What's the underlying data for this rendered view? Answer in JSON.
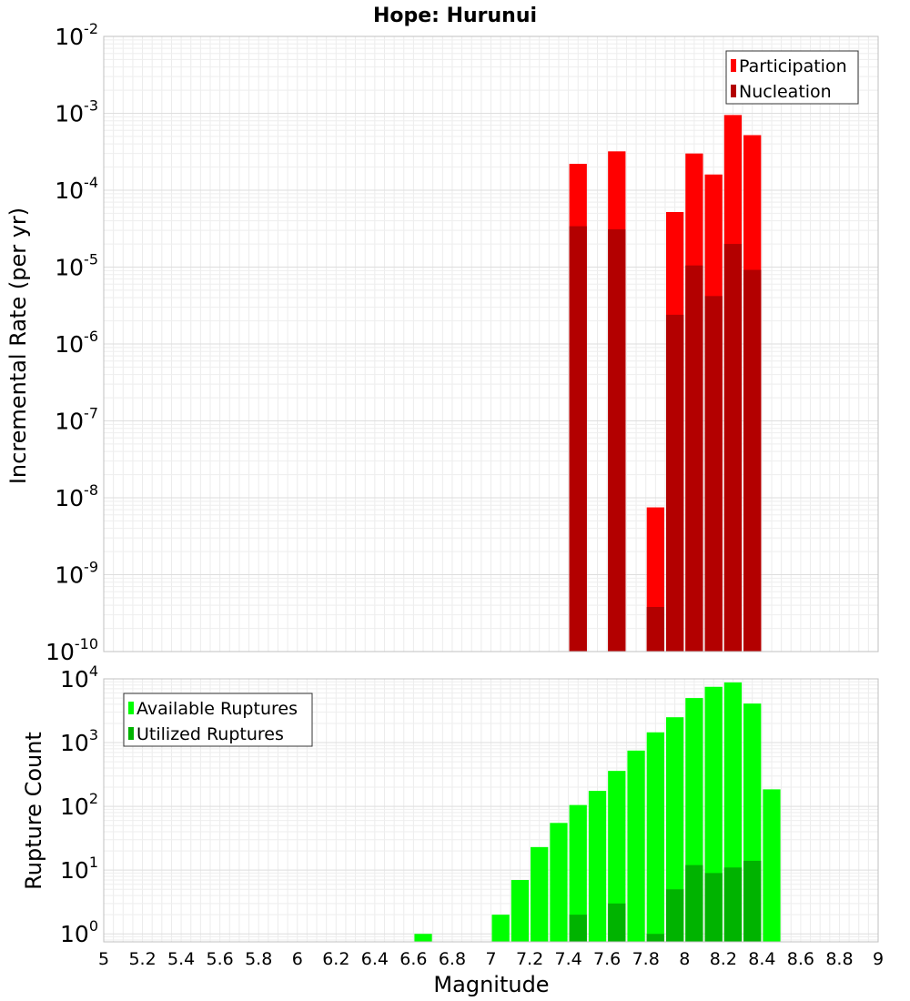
{
  "chart_data": [
    {
      "type": "bar",
      "title": "Hope: Hurunui",
      "xlabel": "",
      "ylabel": "Incremental Rate (per yr)",
      "yscale": "log",
      "ylim": [
        1e-10,
        0.01
      ],
      "xlim": [
        5,
        9
      ],
      "grid": true,
      "legend_position": "top-right",
      "bar_width": 0.1,
      "y_ticks": [
        {
          "base": "10",
          "exp": "-10",
          "value": 1e-10
        },
        {
          "base": "10",
          "exp": "-9",
          "value": 1e-09
        },
        {
          "base": "10",
          "exp": "-8",
          "value": 1e-08
        },
        {
          "base": "10",
          "exp": "-7",
          "value": 1e-07
        },
        {
          "base": "10",
          "exp": "-6",
          "value": 1e-06
        },
        {
          "base": "10",
          "exp": "-5",
          "value": 1e-05
        },
        {
          "base": "10",
          "exp": "-4",
          "value": 0.0001
        },
        {
          "base": "10",
          "exp": "-3",
          "value": 0.001
        },
        {
          "base": "10",
          "exp": "-2",
          "value": 0.01
        }
      ],
      "series": [
        {
          "name": "Participation",
          "color": "#ff0000",
          "x": [
            7.45,
            7.65,
            7.85,
            7.95,
            8.05,
            8.15,
            8.25,
            8.35
          ],
          "values": [
            0.00022,
            0.00032,
            7.5e-09,
            5.2e-05,
            0.0003,
            0.00016,
            0.00095,
            0.00052
          ]
        },
        {
          "name": "Nucleation",
          "color": "#b30000",
          "x": [
            7.45,
            7.65,
            7.85,
            7.95,
            8.05,
            8.15,
            8.25,
            8.35
          ],
          "values": [
            3.4e-05,
            3.1e-05,
            3.8e-10,
            2.4e-06,
            1.05e-05,
            4.2e-06,
            2e-05,
            9.2e-06
          ]
        }
      ]
    },
    {
      "type": "bar",
      "title": "",
      "xlabel": "Magnitude",
      "ylabel": "Rupture Count",
      "yscale": "log",
      "ylim": [
        0.75,
        10000
      ],
      "xlim": [
        5,
        9
      ],
      "grid": true,
      "legend_position": "top-left",
      "bar_width": 0.1,
      "x_ticks": [
        "5",
        "5.2",
        "5.4",
        "5.6",
        "5.8",
        "6",
        "6.2",
        "6.4",
        "6.6",
        "6.8",
        "7",
        "7.2",
        "7.4",
        "7.6",
        "7.8",
        "8",
        "8.2",
        "8.4",
        "8.6",
        "8.8",
        "9"
      ],
      "y_ticks": [
        {
          "base": "10",
          "exp": "0",
          "value": 1
        },
        {
          "base": "10",
          "exp": "1",
          "value": 10
        },
        {
          "base": "10",
          "exp": "2",
          "value": 100
        },
        {
          "base": "10",
          "exp": "3",
          "value": 1000
        },
        {
          "base": "10",
          "exp": "4",
          "value": 10000
        }
      ],
      "series": [
        {
          "name": "Available Ruptures",
          "color": "#00ff00",
          "x": [
            6.65,
            7.05,
            7.15,
            7.25,
            7.35,
            7.45,
            7.55,
            7.65,
            7.75,
            7.85,
            7.95,
            8.05,
            8.15,
            8.25,
            8.35,
            8.45
          ],
          "values": [
            1,
            2,
            7,
            23,
            55,
            105,
            175,
            360,
            750,
            1450,
            2500,
            5000,
            7500,
            8800,
            4100,
            185
          ]
        },
        {
          "name": "Utilized Ruptures",
          "color": "#00b300",
          "x": [
            7.45,
            7.65,
            7.85,
            7.95,
            8.05,
            8.15,
            8.25,
            8.35
          ],
          "values": [
            2,
            3,
            1,
            5,
            12,
            9,
            11,
            14
          ]
        }
      ]
    }
  ]
}
